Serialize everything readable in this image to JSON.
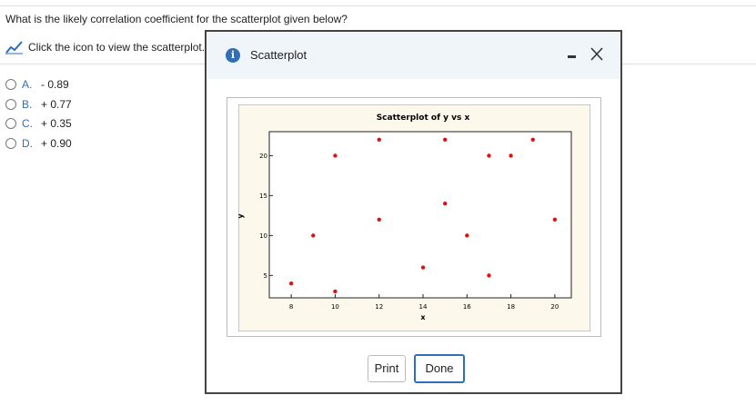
{
  "question": "What is the likely correlation coefficient for the scatterplot given below?",
  "link_text": "Click the icon to view the scatterplot.",
  "options": [
    {
      "letter": "A.",
      "text": "- 0.89"
    },
    {
      "letter": "B.",
      "text": "+ 0.77"
    },
    {
      "letter": "C.",
      "text": "+ 0.35"
    },
    {
      "letter": "D.",
      "text": "+ 0.90"
    }
  ],
  "dialog": {
    "title": "Scatterplot",
    "buttons": [
      "Print",
      "Done"
    ],
    "chart_data": {
      "type": "scatter",
      "title": "Scatterplot of y vs x",
      "x_label": "x",
      "y_label": "y",
      "x": [
        8,
        9,
        10,
        10,
        12,
        12,
        14,
        15,
        15,
        16,
        17,
        17,
        18,
        19,
        20
      ],
      "y": [
        4,
        10,
        20,
        3,
        22,
        12,
        6,
        22,
        14,
        10,
        20,
        5,
        20,
        22,
        12
      ],
      "color": "#dd1111",
      "xlim": [
        7,
        20.75
      ],
      "ylim": [
        2.2,
        23
      ],
      "xticks": [
        8,
        10,
        12,
        14,
        16,
        18,
        20
      ],
      "yticks": [
        5,
        10,
        15,
        20
      ]
    }
  }
}
